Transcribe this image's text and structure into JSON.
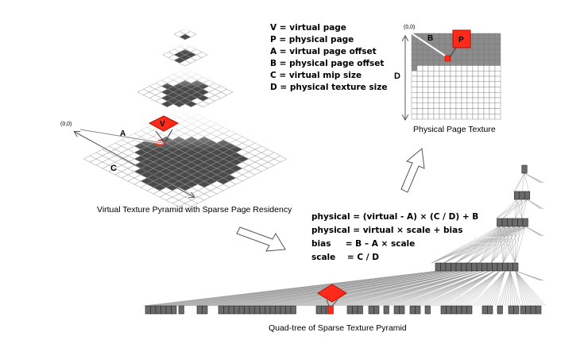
{
  "legend": [
    "V = virtual page",
    "P = physical page",
    "A = virtual page offset",
    "B = physical page offset",
    "C = virtual mip size",
    "D = physical texture size"
  ],
  "formulas": [
    "physical = (virtual - A) × (C / D) + B",
    "physical = virtual × scale + bias",
    "bias     = B – A × scale",
    "scale    = C / D"
  ],
  "captions": {
    "pyramid": "Virtual Texture Pyramid with Sparse Page Residency",
    "physical": "Physical Page Texture",
    "quadtree": "Quad-tree of Sparse Texture Pyramid"
  },
  "labels": {
    "origin_pyramid": "(0,0)",
    "origin_physical": "(0,0)",
    "v": "V",
    "p": "P",
    "a": "A",
    "b": "B",
    "c": "C",
    "d": "D"
  },
  "colors": {
    "page_dark": "#4a4a4a",
    "grid_line": "#9a9a9a",
    "highlight": "#ff2a1a",
    "highlight_edge": "#b01000",
    "physical_filled": "#8c8c8c"
  }
}
